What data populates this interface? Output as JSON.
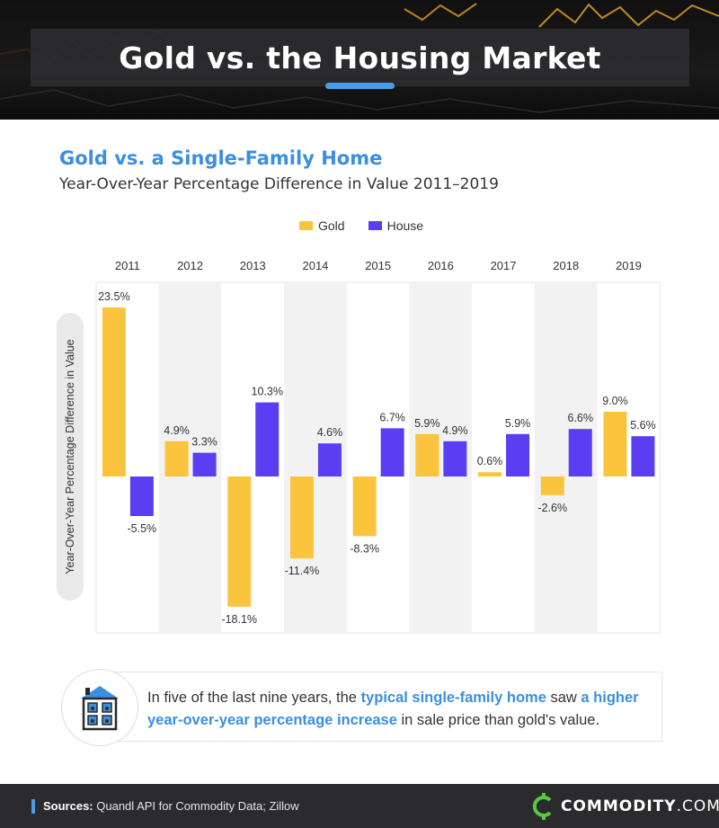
{
  "header": {
    "title": "Gold vs. the Housing Market"
  },
  "chart_title": "Gold vs. a Single-Family Home",
  "chart_subtitle": "Year-Over-Year Percentage Difference in Value 2011–2019",
  "legend": {
    "gold": "Gold",
    "house": "House"
  },
  "colors": {
    "gold": "#FBC43D",
    "house": "#5B3EF2",
    "accent": "#3B8FE0",
    "band": "#F2F2F2"
  },
  "chart_data": {
    "type": "bar",
    "title": "Gold vs. a Single-Family Home",
    "subtitle": "Year-Over-Year Percentage Difference in Value 2011–2019",
    "xlabel": "",
    "ylabel": "Year-Over-Year Percentage Difference in Value",
    "categories": [
      "2011",
      "2012",
      "2013",
      "2014",
      "2015",
      "2016",
      "2017",
      "2018",
      "2019"
    ],
    "series": [
      {
        "name": "Gold",
        "values": [
          23.5,
          4.9,
          -18.1,
          -11.4,
          -8.3,
          5.9,
          0.6,
          -2.6,
          9.0
        ]
      },
      {
        "name": "House",
        "values": [
          -5.5,
          3.3,
          10.3,
          4.6,
          6.7,
          4.9,
          5.9,
          6.6,
          5.6
        ]
      }
    ],
    "labels": {
      "Gold": [
        "23.5%",
        "4.9%",
        "-18.1%",
        "-11.4%",
        "-8.3%",
        "5.9%",
        "0.6%",
        "-2.6%",
        "9.0%"
      ],
      "House": [
        "-5.5%",
        "3.3%",
        "10.3%",
        "4.6%",
        "6.7%",
        "4.9%",
        "5.9%",
        "6.6%",
        "5.6%"
      ]
    },
    "ylim": [
      -21,
      27
    ],
    "legend_position": "top-center",
    "grid": false
  },
  "insight": {
    "icon": "house-icon",
    "text_1": "In five of the last nine years, the ",
    "highlight_1": "typical single-family home",
    "text_2": " saw ",
    "highlight_2": "a higher year-over-year percentage increase",
    "text_3": " in sale price than gold's value."
  },
  "footer": {
    "sources_label": "Sources:",
    "sources_text": " Quandl API for Commodity Data; Zillow",
    "brand_bold": "COMMODITY",
    "brand_light": ".COM"
  }
}
